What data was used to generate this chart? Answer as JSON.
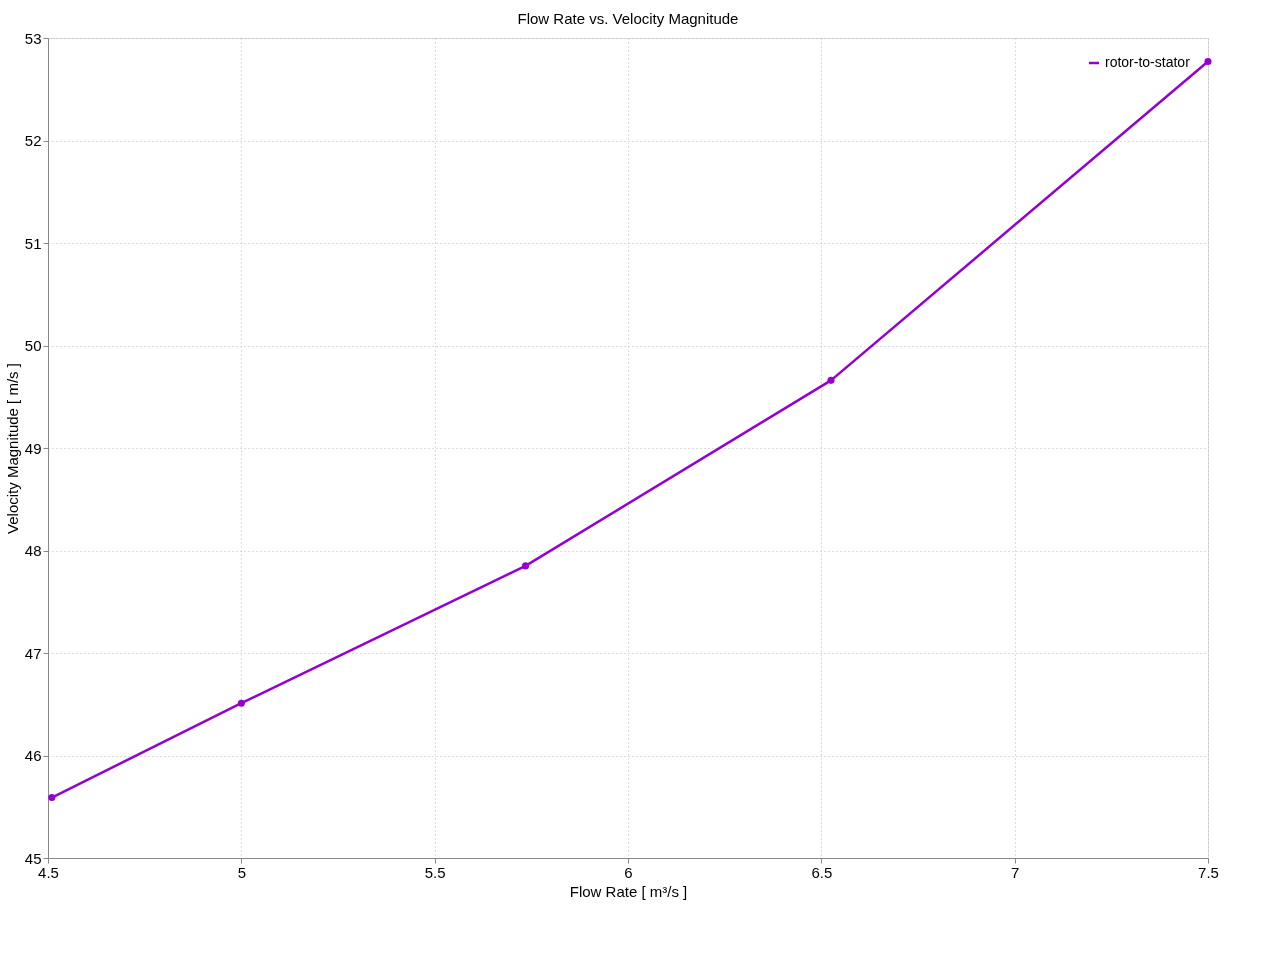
{
  "chart_data": {
    "type": "line",
    "title": "Flow Rate vs. Velocity Magnitude",
    "xlabel": "Flow Rate [ m³/s ]",
    "ylabel": "Velocity Magnitude [ m/s ]",
    "x": [
      4.51,
      5.0,
      5.735,
      6.525,
      7.5
    ],
    "series": [
      {
        "name": "rotor-to-stator",
        "color": "#9400d3",
        "values": [
          45.59,
          46.51,
          47.85,
          49.66,
          52.77
        ]
      }
    ],
    "xlim": [
      4.5,
      7.5
    ],
    "xticks": [
      4.5,
      5,
      5.5,
      6,
      6.5,
      7,
      7.5
    ],
    "ylim": [
      45,
      53
    ],
    "yticks": [
      45,
      46,
      47,
      48,
      49,
      50,
      51,
      52,
      53
    ],
    "grid": true,
    "legend": "top right",
    "marker": "circle",
    "line_style": "solid"
  }
}
